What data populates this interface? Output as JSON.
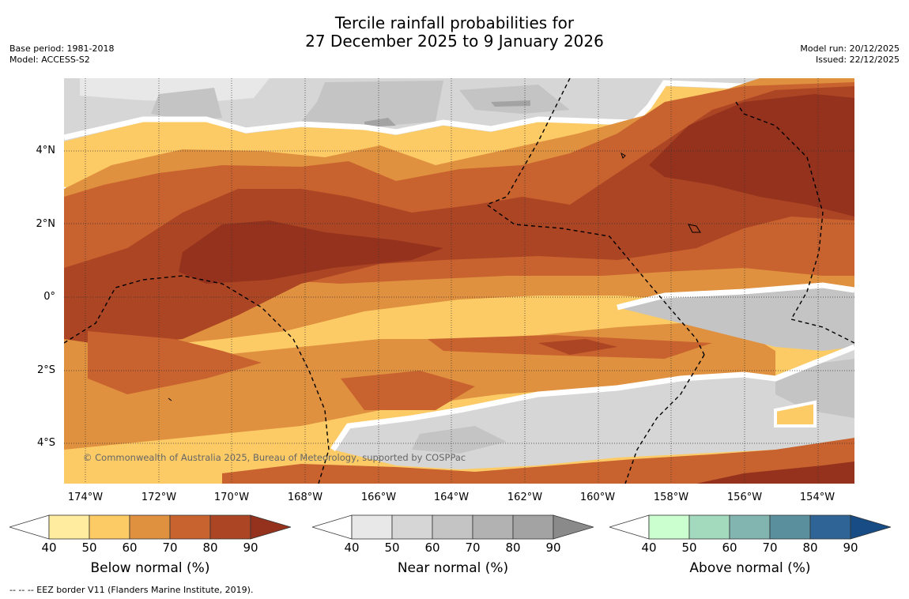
{
  "title": {
    "line1": "Tercile rainfall probabilities for",
    "line2": "27 December 2025 to 9 January 2026"
  },
  "meta_left": {
    "base_period": "Base period: 1981-2018",
    "model": "Model: ACCESS-S2"
  },
  "meta_right": {
    "model_run": "Model run: 20/12/2025",
    "issued": "Issued: 22/12/2025"
  },
  "map": {
    "lat_labels": [
      "4°N",
      "2°N",
      "0°",
      "2°S",
      "4°S"
    ],
    "lon_labels": [
      "174°W",
      "172°W",
      "170°W",
      "168°W",
      "166°W",
      "164°W",
      "162°W",
      "160°W",
      "158°W",
      "156°W",
      "154°W"
    ],
    "copyright": "© Commonwealth of Australia 2025, Bureau of Meteorology, supported by COSPPac"
  },
  "colorbars": [
    {
      "label": "Below normal (%)",
      "ticks": [
        "40",
        "50",
        "60",
        "70",
        "80",
        "90"
      ],
      "colors": [
        "#ffffff",
        "#ffec9e",
        "#fdcb66",
        "#e0913f",
        "#c8622f",
        "#ac4523",
        "#94321d"
      ]
    },
    {
      "label": "Near normal (%)",
      "ticks": [
        "40",
        "50",
        "60",
        "70",
        "80",
        "90"
      ],
      "colors": [
        "#ffffff",
        "#e8e8e8",
        "#d6d6d6",
        "#c4c4c4",
        "#b2b2b2",
        "#a3a3a3",
        "#8a8a8a"
      ]
    },
    {
      "label": "Above normal (%)",
      "ticks": [
        "40",
        "50",
        "60",
        "70",
        "80",
        "90"
      ],
      "colors": [
        "#ffffff",
        "#ccffd0",
        "#a3d9bd",
        "#82b5b0",
        "#5a909e",
        "#2f6596",
        "#184c84"
      ]
    }
  ],
  "footer": "--  --  -- EEZ border V11 (Flanders Marine Institute, 2019)."
}
